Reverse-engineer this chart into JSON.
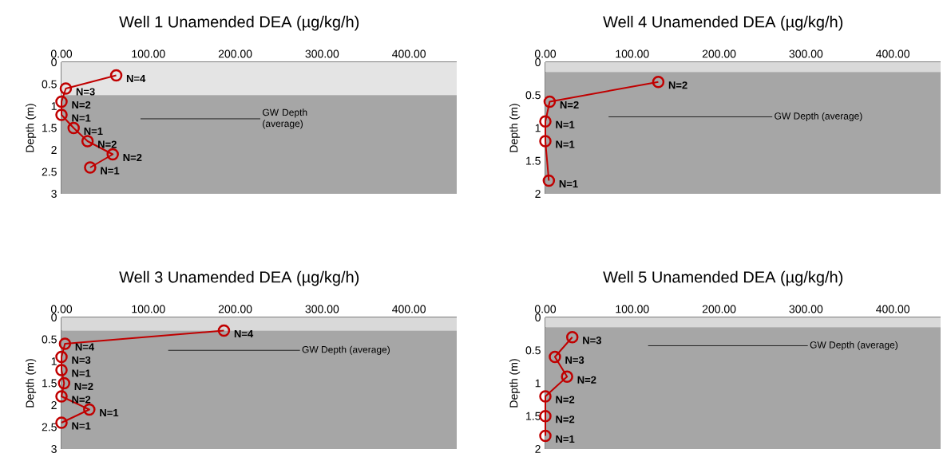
{
  "chart_data": [
    {
      "type": "line",
      "title": "Well 1 Unamended DEA (µg/kg/h)",
      "ylabel": "Depth (m)",
      "marker": "circle",
      "line_style": "solid",
      "xlim": [
        0,
        455
      ],
      "xticks": [
        {
          "value": 0,
          "label": "0.00"
        },
        {
          "value": 100,
          "label": "100.00"
        },
        {
          "value": 200,
          "label": "200.00"
        },
        {
          "value": 300,
          "label": "300.00"
        },
        {
          "value": 400,
          "label": "400.00"
        }
      ],
      "ylim": [
        3,
        0
      ],
      "yticks": [
        0,
        0.5,
        1,
        1.5,
        2,
        2.5,
        3
      ],
      "series": [
        {
          "color": "#c00000",
          "x": [
            63,
            5,
            0,
            0,
            14,
            30,
            59,
            33
          ],
          "values": [
            0.3,
            0.6,
            0.9,
            1.2,
            1.5,
            1.8,
            2.1,
            2.4
          ]
        }
      ],
      "bands": [
        {
          "axis": "y",
          "from": 0,
          "to": 0.75,
          "color": "#e4e4e4"
        },
        {
          "axis": "y",
          "from": 0.75,
          "to": 3,
          "color": "#a6a6a6"
        }
      ],
      "annotations": [
        "GW Depth (average)",
        {
          "text": "N=4",
          "x": 63,
          "y": 0.3
        },
        {
          "text": "N=3",
          "x": 5,
          "y": 0.6
        },
        {
          "text": "N=2",
          "x": 0,
          "y": 0.9
        },
        {
          "text": "N=1",
          "x": 0,
          "y": 1.2
        },
        {
          "text": "N=1",
          "x": 14,
          "y": 1.5
        },
        {
          "text": "N=2",
          "x": 30,
          "y": 1.8
        },
        {
          "text": "N=2",
          "x": 59,
          "y": 2.1
        },
        {
          "text": "N=1",
          "x": 33,
          "y": 2.4
        }
      ]
    },
    {
      "type": "line",
      "title": "Well 4 Unamended DEA (µg/kg/h)",
      "ylabel": "Depth (m)",
      "marker": "circle",
      "line_style": "solid",
      "xlim": [
        0,
        455
      ],
      "xticks": [
        {
          "value": 0,
          "label": "0.00"
        },
        {
          "value": 100,
          "label": "100.00"
        },
        {
          "value": 200,
          "label": "200.00"
        },
        {
          "value": 300,
          "label": "300.00"
        },
        {
          "value": 400,
          "label": "400.00"
        }
      ],
      "ylim": [
        2,
        0
      ],
      "yticks": [
        0,
        0.5,
        1,
        1.5,
        2
      ],
      "series": [
        {
          "color": "#c00000",
          "x": [
            130,
            5,
            0,
            0,
            4
          ],
          "values": [
            0.3,
            0.6,
            0.9,
            1.2,
            1.8
          ]
        }
      ],
      "bands": [
        {
          "axis": "y",
          "from": 0,
          "to": 0.15,
          "color": "#d9d9d9"
        },
        {
          "axis": "y",
          "from": 0.15,
          "to": 2,
          "color": "#a6a6a6"
        }
      ],
      "annotations": [
        "GW Depth (average)",
        {
          "text": "N=2",
          "x": 130,
          "y": 0.3
        },
        {
          "text": "N=2",
          "x": 5,
          "y": 0.6
        },
        {
          "text": "N=1",
          "x": 0,
          "y": 0.9
        },
        {
          "text": "N=1",
          "x": 0,
          "y": 1.2
        },
        {
          "text": "N=1",
          "x": 4,
          "y": 1.8
        }
      ]
    },
    {
      "type": "line",
      "title": "Well 3 Unamended DEA (µg/kg/h)",
      "ylabel": "Depth (m)",
      "marker": "circle",
      "line_style": "solid",
      "xlim": [
        0,
        455
      ],
      "xticks": [
        {
          "value": 0,
          "label": "0.00"
        },
        {
          "value": 100,
          "label": "100.00"
        },
        {
          "value": 200,
          "label": "200.00"
        },
        {
          "value": 300,
          "label": "300.00"
        },
        {
          "value": 400,
          "label": "400.00"
        }
      ],
      "ylim": [
        3,
        0
      ],
      "yticks": [
        0,
        0.5,
        1,
        1.5,
        2,
        2.5,
        3
      ],
      "series": [
        {
          "color": "#c00000",
          "x": [
            187,
            4,
            0,
            0,
            3,
            0,
            32,
            0
          ],
          "values": [
            0.3,
            0.6,
            0.9,
            1.2,
            1.5,
            1.8,
            2.1,
            2.4
          ]
        }
      ],
      "bands": [
        {
          "axis": "y",
          "from": 0,
          "to": 0.3,
          "color": "#d9d9d9"
        },
        {
          "axis": "y",
          "from": 0.3,
          "to": 3,
          "color": "#a6a6a6"
        }
      ],
      "annotations": [
        "GW Depth (average)",
        {
          "text": "N=4",
          "x": 187,
          "y": 0.3
        },
        {
          "text": "N=4",
          "x": 4,
          "y": 0.6
        },
        {
          "text": "N=3",
          "x": 0,
          "y": 0.9
        },
        {
          "text": "N=1",
          "x": 0,
          "y": 1.2
        },
        {
          "text": "N=2",
          "x": 3,
          "y": 1.5
        },
        {
          "text": "N=2",
          "x": 0,
          "y": 1.8
        },
        {
          "text": "N=1",
          "x": 32,
          "y": 2.1
        },
        {
          "text": "N=1",
          "x": 0,
          "y": 2.4
        }
      ]
    },
    {
      "type": "line",
      "title": "Well 5 Unamended DEA (µg/kg/h)",
      "ylabel": "Depth (m)",
      "marker": "circle",
      "line_style": "solid",
      "xlim": [
        0,
        455
      ],
      "xticks": [
        {
          "value": 0,
          "label": "0.00"
        },
        {
          "value": 100,
          "label": "100.00"
        },
        {
          "value": 200,
          "label": "200.00"
        },
        {
          "value": 300,
          "label": "300.00"
        },
        {
          "value": 400,
          "label": "400.00"
        }
      ],
      "ylim": [
        2,
        0
      ],
      "yticks": [
        0,
        0.5,
        1,
        1.5,
        2
      ],
      "series": [
        {
          "color": "#c00000",
          "x": [
            31,
            11,
            25,
            0,
            0,
            0
          ],
          "values": [
            0.3,
            0.6,
            0.9,
            1.2,
            1.5,
            1.8
          ]
        }
      ],
      "bands": [
        {
          "axis": "y",
          "from": 0,
          "to": 0.15,
          "color": "#d9d9d9"
        },
        {
          "axis": "y",
          "from": 0.15,
          "to": 2,
          "color": "#a6a6a6"
        }
      ],
      "annotations": [
        "GW Depth (average)",
        {
          "text": "N=3",
          "x": 31,
          "y": 0.3
        },
        {
          "text": "N=3",
          "x": 11,
          "y": 0.6
        },
        {
          "text": "N=2",
          "x": 25,
          "y": 0.9
        },
        {
          "text": "N=2",
          "x": 0,
          "y": 1.2
        },
        {
          "text": "N=2",
          "x": 0,
          "y": 1.5
        },
        {
          "text": "N=1",
          "x": 0,
          "y": 1.8
        }
      ]
    }
  ]
}
